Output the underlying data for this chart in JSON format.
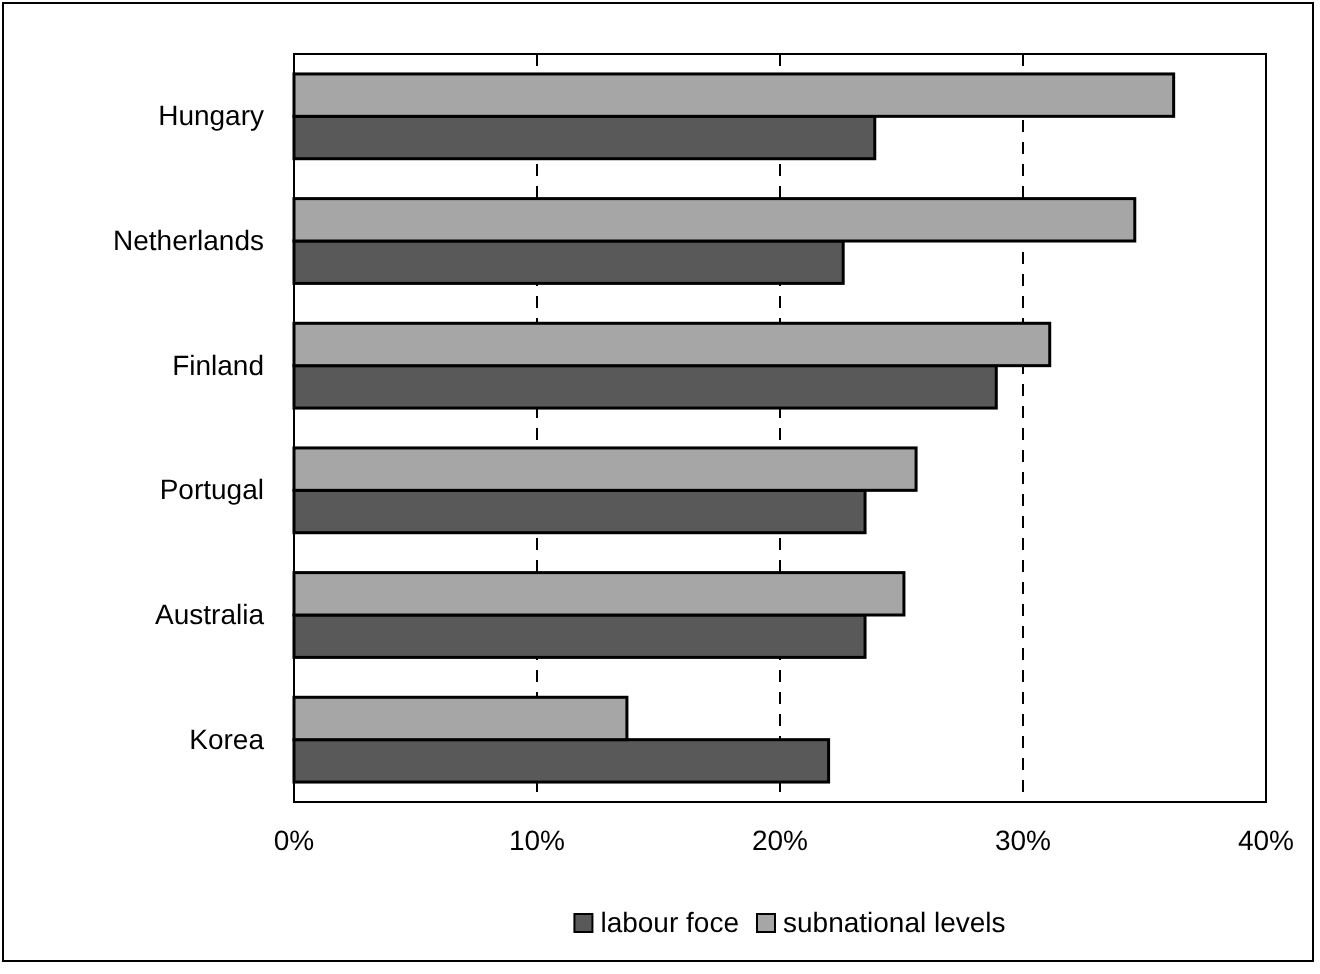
{
  "chart_data": {
    "type": "bar",
    "orientation": "horizontal",
    "categories": [
      "Hungary",
      "Netherlands",
      "Finland",
      "Portugal",
      "Australia",
      "Korea"
    ],
    "series": [
      {
        "name": "labour foce",
        "color": "#595959",
        "values": [
          23.9,
          22.6,
          28.9,
          23.5,
          23.5,
          22.0
        ]
      },
      {
        "name": "subnational levels",
        "color": "#a6a6a6",
        "values": [
          36.2,
          34.6,
          31.1,
          25.6,
          25.1,
          13.7
        ]
      }
    ],
    "xlim": [
      0,
      40
    ],
    "xticks": [
      {
        "value": 0,
        "label": "0%"
      },
      {
        "value": 10,
        "label": "10%"
      },
      {
        "value": 20,
        "label": "20%"
      },
      {
        "value": 30,
        "label": "30%"
      },
      {
        "value": 40,
        "label": "40%"
      }
    ],
    "grid": "x",
    "legend": "bottom"
  }
}
